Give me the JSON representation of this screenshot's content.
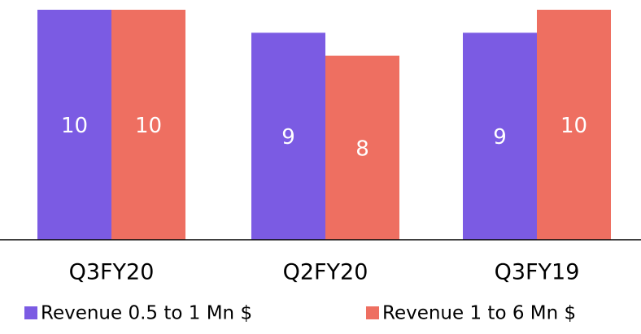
{
  "chart_data": {
    "type": "bar",
    "categories": [
      "Q3FY20",
      "Q2FY20",
      "Q3FY19"
    ],
    "series": [
      {
        "name": "Revenue 0.5 to 1 Mn $",
        "color": "#7b5be3",
        "values": [
          10,
          9,
          9
        ]
      },
      {
        "name": "Revenue 1 to 6 Mn $",
        "color": "#ee6f61",
        "values": [
          10,
          8,
          10
        ]
      }
    ]
  }
}
